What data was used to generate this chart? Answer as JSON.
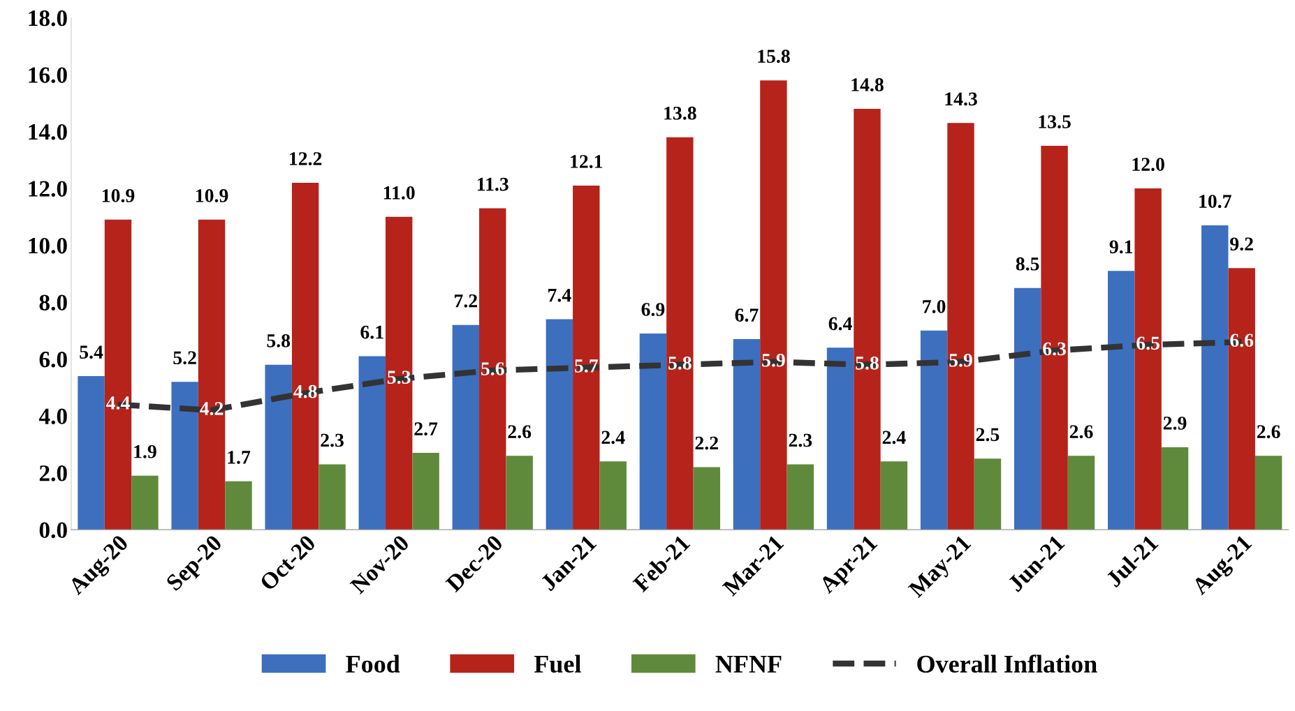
{
  "chart_data": {
    "type": "bar",
    "categories": [
      "Aug-20",
      "Sep-20",
      "Oct-20",
      "Nov-20",
      "Dec-20",
      "Jan-21",
      "Feb-21",
      "Mar-21",
      "Apr-21",
      "May-21",
      "Jun-21",
      "Jul-21",
      "Aug-21"
    ],
    "series": [
      {
        "name": "Food",
        "color": "#3d6fbf",
        "values": [
          5.4,
          5.2,
          5.8,
          6.1,
          7.2,
          7.4,
          6.9,
          6.7,
          6.4,
          7.0,
          8.5,
          9.1,
          10.7
        ],
        "value_labels": [
          "5.4",
          "5.2",
          "5.8",
          "6.1",
          "7.2",
          "7.4",
          "6.9",
          "6.7",
          "6.4",
          "7.0",
          "8.5",
          "9.1",
          "10.7"
        ]
      },
      {
        "name": "Fuel",
        "color": "#b5231b",
        "values": [
          10.9,
          10.9,
          12.2,
          11.0,
          11.3,
          12.1,
          13.8,
          15.8,
          14.8,
          14.3,
          13.5,
          12.0,
          9.2
        ],
        "value_labels": [
          "10.9",
          "10.9",
          "12.2",
          "11.0",
          "11.3",
          "12.1",
          "13.8",
          "15.8",
          "14.8",
          "14.3",
          "13.5",
          "12.0",
          "9.2"
        ]
      },
      {
        "name": "NFNF",
        "color": "#5f8a3b",
        "values": [
          1.9,
          1.7,
          2.3,
          2.7,
          2.6,
          2.4,
          2.2,
          2.3,
          2.4,
          2.5,
          2.6,
          2.9,
          2.6
        ],
        "value_labels": [
          "1.9",
          "1.7",
          "2.3",
          "2.7",
          "2.6",
          "2.4",
          "2.2",
          "2.3",
          "2.4",
          "2.5",
          "2.6",
          "2.9",
          "2.6"
        ]
      },
      {
        "name": "Overall Inflation",
        "type": "line",
        "line_style": "dashed",
        "color": "#333333",
        "values": [
          4.4,
          4.2,
          4.8,
          5.3,
          5.6,
          5.7,
          5.8,
          5.9,
          5.8,
          5.9,
          6.3,
          6.5,
          6.6
        ],
        "value_labels": [
          "4.4",
          "4.2",
          "4.8",
          "5.3",
          "5.6",
          "5.7",
          "5.8",
          "5.9",
          "5.8",
          "5.9",
          "6.3",
          "6.5",
          "6.6"
        ]
      }
    ],
    "ylim": [
      0,
      18
    ],
    "yticks": [
      {
        "value": 0,
        "label": "0.0"
      },
      {
        "value": 2,
        "label": "2.0"
      },
      {
        "value": 4,
        "label": "4.0"
      },
      {
        "value": 6,
        "label": "6.0"
      },
      {
        "value": 8,
        "label": "8.0"
      },
      {
        "value": 10,
        "label": "10.0"
      },
      {
        "value": 12,
        "label": "12.0"
      },
      {
        "value": 14,
        "label": "14.0"
      },
      {
        "value": 16,
        "label": "16.0"
      },
      {
        "value": 18,
        "label": "18.0"
      }
    ],
    "grid": false,
    "legend": "bottom"
  }
}
